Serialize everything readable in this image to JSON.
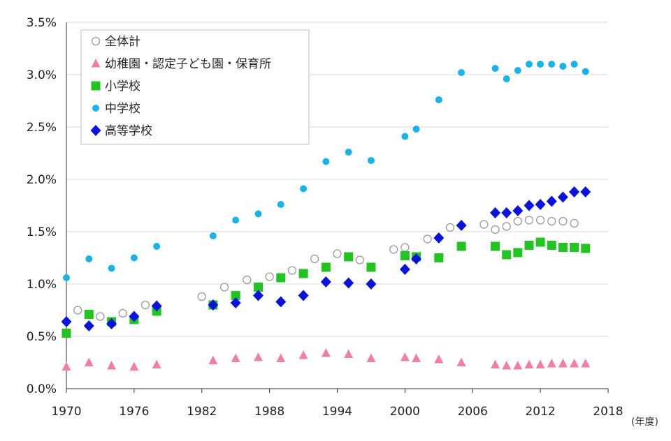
{
  "chart_data": {
    "type": "scatter",
    "xlabel_unit": "(年度)",
    "ylabel": "",
    "xlim": [
      1970,
      2018
    ],
    "ylim": [
      0,
      3.5
    ],
    "x_ticks": [
      "1970",
      "1976",
      "1982",
      "1988",
      "1994",
      "2000",
      "2006",
      "2012",
      "2018"
    ],
    "y_ticks": [
      "0.0%",
      "0.5%",
      "1.0%",
      "1.5%",
      "2.0%",
      "2.5%",
      "3.0%",
      "3.5%"
    ],
    "grid": "horizontal",
    "legend_position": "top-left",
    "series": [
      {
        "name": "全体計",
        "marker": "open-circle",
        "color": "#9a9a9a",
        "points": [
          [
            1971,
            0.75
          ],
          [
            1973,
            0.69
          ],
          [
            1975,
            0.72
          ],
          [
            1977,
            0.8
          ],
          [
            1982,
            0.88
          ],
          [
            1984,
            0.97
          ],
          [
            1986,
            1.04
          ],
          [
            1988,
            1.07
          ],
          [
            1990,
            1.13
          ],
          [
            1992,
            1.24
          ],
          [
            1994,
            1.29
          ],
          [
            1996,
            1.23
          ],
          [
            1999,
            1.33
          ],
          [
            2000,
            1.35
          ],
          [
            2002,
            1.43
          ],
          [
            2004,
            1.54
          ],
          [
            2007,
            1.57
          ],
          [
            2008,
            1.52
          ],
          [
            2009,
            1.55
          ],
          [
            2010,
            1.6
          ],
          [
            2011,
            1.61
          ],
          [
            2012,
            1.61
          ],
          [
            2013,
            1.6
          ],
          [
            2014,
            1.6
          ],
          [
            2015,
            1.58
          ]
        ]
      },
      {
        "name": "幼稚園・認定子ども園・保育所",
        "marker": "triangle",
        "color": "#ef7fa6",
        "points": [
          [
            1970,
            0.21
          ],
          [
            1972,
            0.25
          ],
          [
            1974,
            0.22
          ],
          [
            1976,
            0.21
          ],
          [
            1978,
            0.23
          ],
          [
            1983,
            0.27
          ],
          [
            1985,
            0.29
          ],
          [
            1987,
            0.3
          ],
          [
            1989,
            0.29
          ],
          [
            1991,
            0.32
          ],
          [
            1993,
            0.34
          ],
          [
            1995,
            0.33
          ],
          [
            1997,
            0.29
          ],
          [
            2000,
            0.3
          ],
          [
            2001,
            0.29
          ],
          [
            2003,
            0.28
          ],
          [
            2005,
            0.25
          ],
          [
            2008,
            0.23
          ],
          [
            2009,
            0.22
          ],
          [
            2010,
            0.22
          ],
          [
            2011,
            0.23
          ],
          [
            2012,
            0.23
          ],
          [
            2013,
            0.24
          ],
          [
            2014,
            0.24
          ],
          [
            2015,
            0.24
          ],
          [
            2016,
            0.24
          ]
        ]
      },
      {
        "name": "小学校",
        "marker": "square",
        "color": "#22c322",
        "points": [
          [
            1970,
            0.53
          ],
          [
            1972,
            0.71
          ],
          [
            1974,
            0.64
          ],
          [
            1976,
            0.66
          ],
          [
            1978,
            0.74
          ],
          [
            1983,
            0.8
          ],
          [
            1985,
            0.89
          ],
          [
            1987,
            0.97
          ],
          [
            1989,
            1.06
          ],
          [
            1991,
            1.1
          ],
          [
            1993,
            1.16
          ],
          [
            1995,
            1.26
          ],
          [
            1997,
            1.16
          ],
          [
            2000,
            1.27
          ],
          [
            2001,
            1.26
          ],
          [
            2003,
            1.25
          ],
          [
            2005,
            1.36
          ],
          [
            2008,
            1.36
          ],
          [
            2009,
            1.28
          ],
          [
            2010,
            1.3
          ],
          [
            2011,
            1.37
          ],
          [
            2012,
            1.4
          ],
          [
            2013,
            1.37
          ],
          [
            2014,
            1.35
          ],
          [
            2015,
            1.35
          ],
          [
            2016,
            1.34
          ]
        ]
      },
      {
        "name": "中学校",
        "marker": "circle",
        "color": "#1ab2e8",
        "points": [
          [
            1970,
            1.06
          ],
          [
            1972,
            1.24
          ],
          [
            1974,
            1.15
          ],
          [
            1976,
            1.25
          ],
          [
            1978,
            1.36
          ],
          [
            1983,
            1.46
          ],
          [
            1985,
            1.61
          ],
          [
            1987,
            1.67
          ],
          [
            1989,
            1.76
          ],
          [
            1991,
            1.91
          ],
          [
            1993,
            2.17
          ],
          [
            1995,
            2.26
          ],
          [
            1997,
            2.18
          ],
          [
            2000,
            2.41
          ],
          [
            2001,
            2.48
          ],
          [
            2003,
            2.76
          ],
          [
            2005,
            3.02
          ],
          [
            2008,
            3.06
          ],
          [
            2009,
            2.96
          ],
          [
            2010,
            3.04
          ],
          [
            2011,
            3.1
          ],
          [
            2012,
            3.1
          ],
          [
            2013,
            3.1
          ],
          [
            2014,
            3.08
          ],
          [
            2015,
            3.1
          ],
          [
            2016,
            3.03
          ]
        ]
      },
      {
        "name": "高等学校",
        "marker": "diamond",
        "color": "#0a14d8",
        "points": [
          [
            1970,
            0.64
          ],
          [
            1972,
            0.6
          ],
          [
            1974,
            0.62
          ],
          [
            1976,
            0.69
          ],
          [
            1978,
            0.79
          ],
          [
            1983,
            0.8
          ],
          [
            1985,
            0.82
          ],
          [
            1987,
            0.89
          ],
          [
            1989,
            0.83
          ],
          [
            1991,
            0.89
          ],
          [
            1993,
            1.02
          ],
          [
            1995,
            1.01
          ],
          [
            1997,
            1.0
          ],
          [
            2000,
            1.14
          ],
          [
            2001,
            1.24
          ],
          [
            2003,
            1.44
          ],
          [
            2005,
            1.56
          ],
          [
            2008,
            1.68
          ],
          [
            2009,
            1.68
          ],
          [
            2010,
            1.7
          ],
          [
            2011,
            1.75
          ],
          [
            2012,
            1.76
          ],
          [
            2013,
            1.79
          ],
          [
            2014,
            1.83
          ],
          [
            2015,
            1.88
          ],
          [
            2016,
            1.88
          ]
        ]
      }
    ]
  }
}
